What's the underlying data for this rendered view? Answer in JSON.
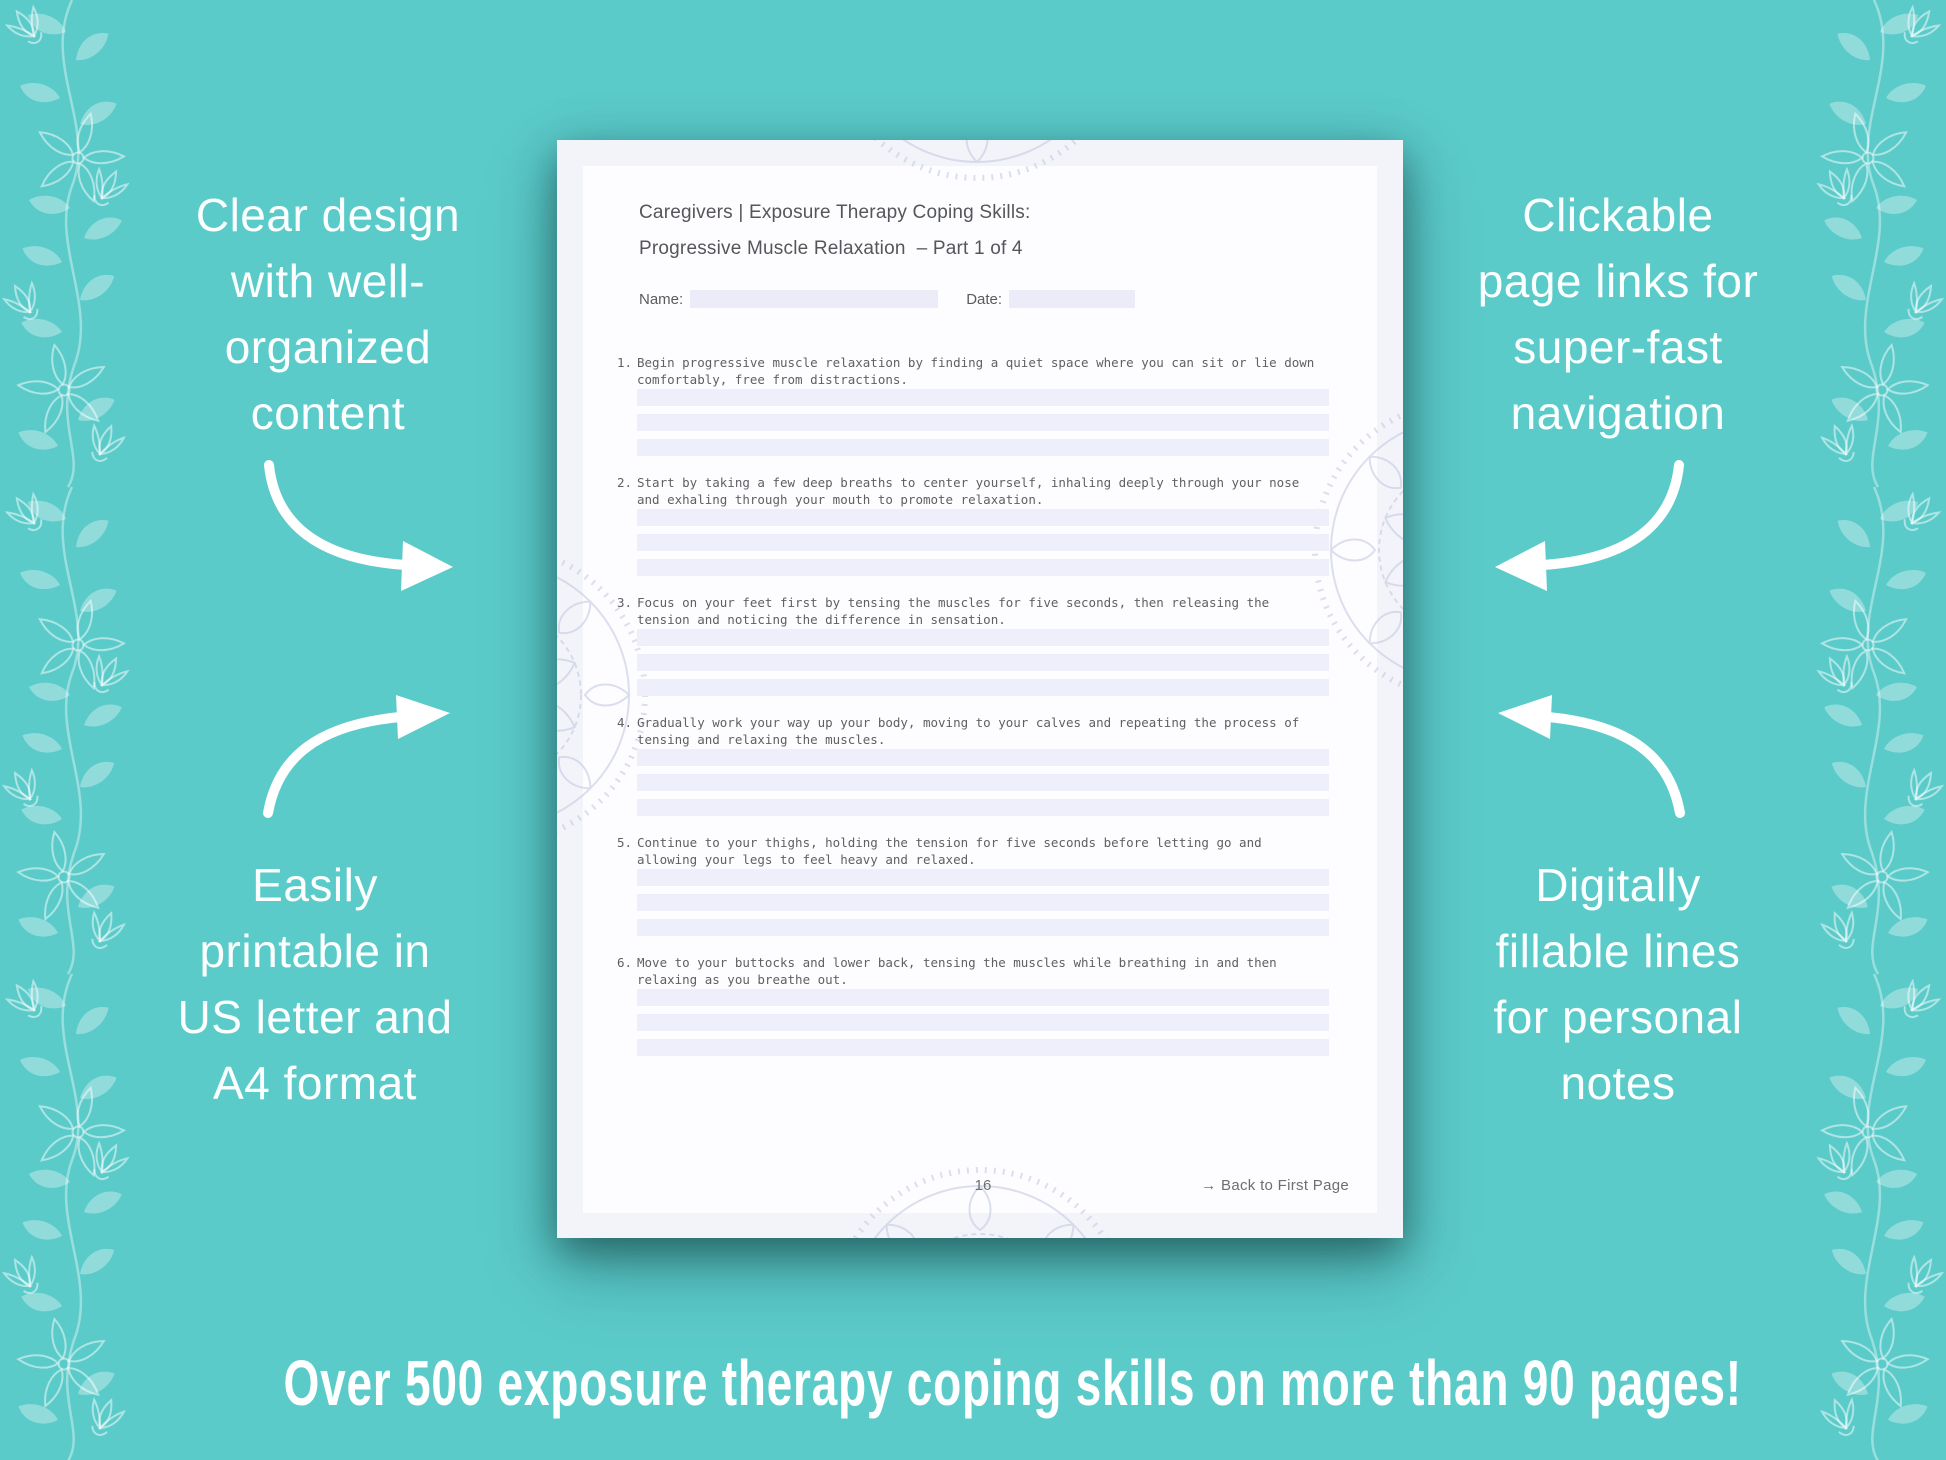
{
  "colors": {
    "background_teal": "#5bcbca",
    "page_margin": "#f3f3fa",
    "page_card": "#fdfdff",
    "fill_line": "#eeeffa",
    "note_text": "#fbffff",
    "worksheet_text": "#54565a"
  },
  "notes": {
    "top_left": {
      "lines": [
        "Clear design",
        "with well-",
        "organized",
        "content"
      ]
    },
    "bottom_left": {
      "lines": [
        "Easily",
        "printable in",
        "US letter and",
        "A4 format"
      ]
    },
    "top_right": {
      "lines": [
        "Clickable",
        "page links for",
        "super-fast",
        "navigation"
      ]
    },
    "bottom_right": {
      "lines": [
        "Digitally",
        "fillable lines",
        "for personal",
        "notes"
      ]
    }
  },
  "banner": {
    "text": "Over 500 exposure therapy coping skills on more than 90 pages!"
  },
  "worksheet": {
    "title_line1": "Caregivers | Exposure Therapy Coping Skills:",
    "title_line2": "Progressive Muscle Relaxation  – Part 1 of 4",
    "name_label": "Name:",
    "name_value": "",
    "date_label": "Date:",
    "date_value": "",
    "items": [
      {
        "number": "1.",
        "text": "Begin progressive muscle relaxation by finding a quiet space where you can sit or lie down comfortably, free from distractions.",
        "fill_lines": 3
      },
      {
        "number": "2.",
        "text": "Start by taking a few deep breaths to center yourself, inhaling deeply through your nose and exhaling through your mouth to promote relaxation.",
        "fill_lines": 3
      },
      {
        "number": "3.",
        "text": "Focus on your feet first by tensing the muscles for five seconds, then releasing the tension and noticing the difference in sensation.",
        "fill_lines": 3
      },
      {
        "number": "4.",
        "text": "Gradually work your way up your body, moving to your calves and repeating the process of tensing and relaxing the muscles.",
        "fill_lines": 3
      },
      {
        "number": "5.",
        "text": "Continue to your thighs, holding the tension for five seconds before letting go and allowing your legs to feel heavy and relaxed.",
        "fill_lines": 3
      },
      {
        "number": "6.",
        "text": "Move to your buttocks and lower back, tensing the muscles while breathing in and then relaxing as you breathe out.",
        "fill_lines": 3
      }
    ],
    "page_number": "16",
    "back_link": "→ Back to First Page"
  }
}
